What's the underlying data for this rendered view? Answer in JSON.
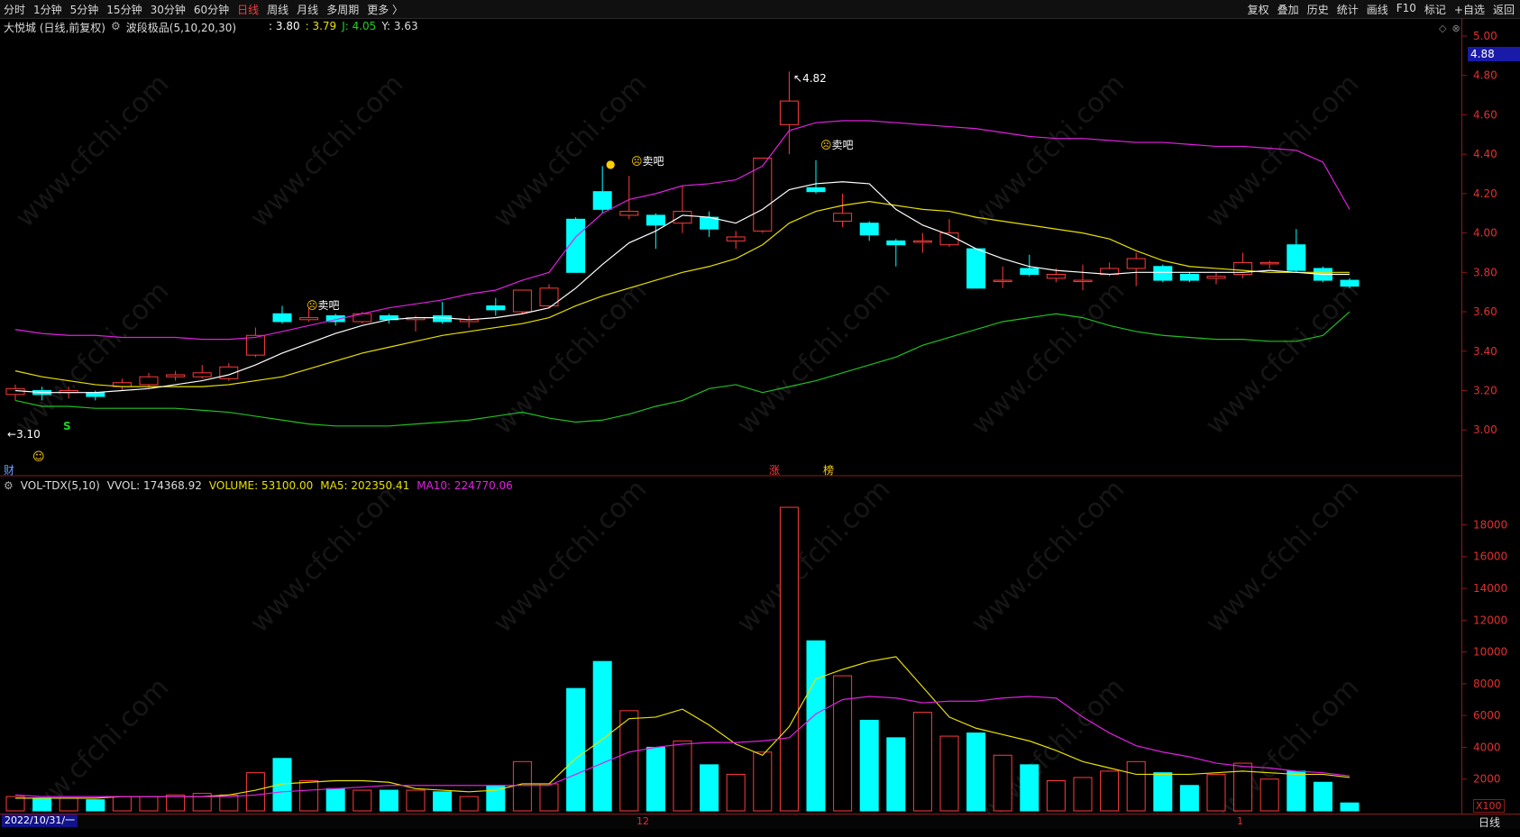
{
  "toolbar": {
    "left": [
      "分时",
      "1分钟",
      "5分钟",
      "15分钟",
      "30分钟",
      "60分钟",
      "日线",
      "周线",
      "月线",
      "多周期",
      "更多 〉"
    ],
    "active": "日线",
    "right": [
      "复权",
      "叠加",
      "历史",
      "统计",
      "画线",
      "F10",
      "标记",
      "+自选",
      "返回"
    ]
  },
  "info": {
    "title": "大悦城 (日线,前复权)",
    "indicator": "波段极品(5,10,20,30)",
    "v1": ": 3.80",
    "v2": ": 3.79",
    "j": "J: 4.05",
    "y": "Y: 3.63"
  },
  "price_badge": "4.88",
  "annotations": {
    "high": "4.82",
    "low": "3.10",
    "sell1": "卖吧",
    "sell2": "卖吧",
    "sell3": "卖吧",
    "buy_mark": "S",
    "fin": "财",
    "zhang": "涨",
    "bang": "榜"
  },
  "volume_info": {
    "name": "VOL-TDX(5,10)",
    "vvol": "VVOL: 174368.92",
    "volume": "VOLUME: 53100.00",
    "ma5": "MA5: 202350.41",
    "ma10": "MA10: 224770.06"
  },
  "bottom": {
    "start_date": "2022/10/31/一",
    "mark12": "12",
    "mark1": "1",
    "period": "日线",
    "unit": "X100"
  },
  "watermark": "www.cfchi.com",
  "colors": {
    "up": "#ff3b3b",
    "down": "#00ffff",
    "ma5": "#ffffff",
    "ma10": "#e8e000",
    "upper": "#e020e0",
    "lower": "#20c020"
  },
  "chart_data": {
    "type": "candlestick",
    "price_axis": [
      5.0,
      4.8,
      4.6,
      4.4,
      4.2,
      4.0,
      3.8,
      3.6,
      3.4,
      3.2,
      3.0
    ],
    "volume_axis": [
      18000,
      16000,
      14000,
      12000,
      10000,
      8000,
      6000,
      4000,
      2000
    ],
    "candles": [
      {
        "o": 3.18,
        "c": 3.21,
        "h": 3.23,
        "l": 3.15
      },
      {
        "o": 3.2,
        "c": 3.18,
        "h": 3.22,
        "l": 3.15
      },
      {
        "o": 3.19,
        "c": 3.2,
        "h": 3.22,
        "l": 3.16
      },
      {
        "o": 3.19,
        "c": 3.17,
        "h": 3.2,
        "l": 3.15
      },
      {
        "o": 3.22,
        "c": 3.24,
        "h": 3.26,
        "l": 3.2
      },
      {
        "o": 3.23,
        "c": 3.27,
        "h": 3.29,
        "l": 3.21
      },
      {
        "o": 3.27,
        "c": 3.28,
        "h": 3.3,
        "l": 3.25
      },
      {
        "o": 3.27,
        "c": 3.29,
        "h": 3.33,
        "l": 3.26
      },
      {
        "o": 3.26,
        "c": 3.32,
        "h": 3.34,
        "l": 3.25
      },
      {
        "o": 3.38,
        "c": 3.48,
        "h": 3.52,
        "l": 3.37
      },
      {
        "o": 3.59,
        "c": 3.55,
        "h": 3.63,
        "l": 3.54
      },
      {
        "o": 3.56,
        "c": 3.57,
        "h": 3.62,
        "l": 3.55
      },
      {
        "o": 3.58,
        "c": 3.55,
        "h": 3.59,
        "l": 3.53
      },
      {
        "o": 3.55,
        "c": 3.59,
        "h": 3.6,
        "l": 3.54
      },
      {
        "o": 3.58,
        "c": 3.56,
        "h": 3.59,
        "l": 3.54
      },
      {
        "o": 3.56,
        "c": 3.57,
        "h": 3.58,
        "l": 3.5
      },
      {
        "o": 3.58,
        "c": 3.55,
        "h": 3.65,
        "l": 3.54
      },
      {
        "o": 3.55,
        "c": 3.56,
        "h": 3.58,
        "l": 3.52
      },
      {
        "o": 3.63,
        "c": 3.61,
        "h": 3.67,
        "l": 3.58
      },
      {
        "o": 3.6,
        "c": 3.71,
        "h": 3.71,
        "l": 3.59
      },
      {
        "o": 3.63,
        "c": 3.72,
        "h": 3.74,
        "l": 3.62
      },
      {
        "o": 4.07,
        "c": 3.8,
        "h": 4.08,
        "l": 3.8
      },
      {
        "o": 4.21,
        "c": 4.12,
        "h": 4.34,
        "l": 4.1
      },
      {
        "o": 4.09,
        "c": 4.11,
        "h": 4.29,
        "l": 4.07
      },
      {
        "o": 4.09,
        "c": 4.04,
        "h": 4.1,
        "l": 3.92
      },
      {
        "o": 4.05,
        "c": 4.11,
        "h": 4.24,
        "l": 4.0
      },
      {
        "o": 4.08,
        "c": 4.02,
        "h": 4.11,
        "l": 3.98
      },
      {
        "o": 3.96,
        "c": 3.98,
        "h": 4.01,
        "l": 3.92
      },
      {
        "o": 4.01,
        "c": 4.38,
        "h": 4.38,
        "l": 4.0
      },
      {
        "o": 4.55,
        "c": 4.67,
        "h": 4.82,
        "l": 4.4
      },
      {
        "o": 4.23,
        "c": 4.21,
        "h": 4.37,
        "l": 4.2
      },
      {
        "o": 4.06,
        "c": 4.1,
        "h": 4.2,
        "l": 4.03
      },
      {
        "o": 4.05,
        "c": 3.99,
        "h": 4.06,
        "l": 3.96
      },
      {
        "o": 3.96,
        "c": 3.94,
        "h": 3.97,
        "l": 3.83
      },
      {
        "o": 3.96,
        "c": 3.96,
        "h": 4.0,
        "l": 3.9
      },
      {
        "o": 3.94,
        "c": 4.0,
        "h": 4.07,
        "l": 3.93
      },
      {
        "o": 3.92,
        "c": 3.72,
        "h": 3.92,
        "l": 3.72
      },
      {
        "o": 3.76,
        "c": 3.76,
        "h": 3.83,
        "l": 3.72
      },
      {
        "o": 3.82,
        "c": 3.79,
        "h": 3.89,
        "l": 3.78
      },
      {
        "o": 3.77,
        "c": 3.79,
        "h": 3.82,
        "l": 3.75
      },
      {
        "o": 3.76,
        "c": 3.76,
        "h": 3.84,
        "l": 3.71
      },
      {
        "o": 3.79,
        "c": 3.82,
        "h": 3.85,
        "l": 3.78
      },
      {
        "o": 3.82,
        "c": 3.87,
        "h": 3.9,
        "l": 3.73
      },
      {
        "o": 3.83,
        "c": 3.76,
        "h": 3.84,
        "l": 3.75
      },
      {
        "o": 3.79,
        "c": 3.76,
        "h": 3.8,
        "l": 3.75
      },
      {
        "o": 3.77,
        "c": 3.78,
        "h": 3.8,
        "l": 3.74
      },
      {
        "o": 3.79,
        "c": 3.85,
        "h": 3.9,
        "l": 3.77
      },
      {
        "o": 3.85,
        "c": 3.85,
        "h": 3.86,
        "l": 3.82
      },
      {
        "o": 3.94,
        "c": 3.81,
        "h": 4.02,
        "l": 3.8
      },
      {
        "o": 3.82,
        "c": 3.76,
        "h": 3.83,
        "l": 3.75
      },
      {
        "o": 3.76,
        "c": 3.73,
        "h": 3.77,
        "l": 3.72
      }
    ],
    "ma5": [
      3.2,
      3.19,
      3.19,
      3.19,
      3.2,
      3.21,
      3.23,
      3.25,
      3.28,
      3.33,
      3.39,
      3.44,
      3.49,
      3.53,
      3.56,
      3.57,
      3.57,
      3.56,
      3.57,
      3.59,
      3.62,
      3.72,
      3.84,
      3.95,
      4.01,
      4.09,
      4.08,
      4.05,
      4.12,
      4.22,
      4.25,
      4.26,
      4.25,
      4.12,
      4.04,
      3.99,
      3.92,
      3.87,
      3.83,
      3.81,
      3.8,
      3.79,
      3.8,
      3.8,
      3.8,
      3.8,
      3.8,
      3.81,
      3.8,
      3.79,
      3.79
    ],
    "ma10": [
      3.3,
      3.27,
      3.25,
      3.23,
      3.22,
      3.22,
      3.22,
      3.22,
      3.23,
      3.25,
      3.27,
      3.31,
      3.35,
      3.39,
      3.42,
      3.45,
      3.48,
      3.5,
      3.52,
      3.54,
      3.57,
      3.63,
      3.68,
      3.72,
      3.76,
      3.8,
      3.83,
      3.87,
      3.94,
      4.05,
      4.11,
      4.14,
      4.16,
      4.14,
      4.12,
      4.11,
      4.08,
      4.06,
      4.04,
      4.02,
      4.0,
      3.97,
      3.91,
      3.86,
      3.83,
      3.82,
      3.81,
      3.8,
      3.8,
      3.8,
      3.8
    ],
    "upper": [
      3.51,
      3.49,
      3.48,
      3.48,
      3.47,
      3.47,
      3.47,
      3.46,
      3.46,
      3.47,
      3.5,
      3.53,
      3.56,
      3.59,
      3.62,
      3.64,
      3.66,
      3.69,
      3.71,
      3.76,
      3.8,
      3.98,
      4.1,
      4.17,
      4.2,
      4.24,
      4.25,
      4.27,
      4.34,
      4.52,
      4.56,
      4.57,
      4.57,
      4.56,
      4.55,
      4.54,
      4.53,
      4.51,
      4.49,
      4.48,
      4.48,
      4.47,
      4.46,
      4.46,
      4.45,
      4.44,
      4.44,
      4.43,
      4.42,
      4.36,
      4.12
    ],
    "lower": [
      3.15,
      3.12,
      3.12,
      3.11,
      3.11,
      3.11,
      3.11,
      3.1,
      3.09,
      3.07,
      3.05,
      3.03,
      3.02,
      3.02,
      3.02,
      3.03,
      3.04,
      3.05,
      3.07,
      3.09,
      3.06,
      3.04,
      3.05,
      3.08,
      3.12,
      3.15,
      3.21,
      3.23,
      3.19,
      3.22,
      3.25,
      3.29,
      3.33,
      3.37,
      3.43,
      3.47,
      3.51,
      3.55,
      3.57,
      3.59,
      3.57,
      3.53,
      3.5,
      3.48,
      3.47,
      3.46,
      3.46,
      3.45,
      3.45,
      3.48,
      3.6
    ],
    "volumes": [
      900,
      800,
      800,
      700,
      900,
      900,
      1000,
      1100,
      1000,
      2400,
      3300,
      1900,
      1400,
      1300,
      1300,
      1300,
      1200,
      900,
      1600,
      3100,
      1700,
      7700,
      9400,
      6300,
      4000,
      4400,
      2900,
      2300,
      3700,
      19100,
      10700,
      8500,
      5700,
      4600,
      6200,
      4700,
      4900,
      3500,
      2900,
      1900,
      2100,
      2500,
      3100,
      2400,
      1600,
      2300,
      3000,
      2000,
      2500,
      1800,
      500
    ],
    "vol_ma5": [
      800,
      800,
      800,
      800,
      900,
      900,
      900,
      900,
      1000,
      1300,
      1700,
      1800,
      1900,
      1900,
      1800,
      1400,
      1300,
      1200,
      1300,
      1700,
      1700,
      3300,
      4500,
      5800,
      5900,
      6400,
      5400,
      4200,
      3500,
      5300,
      8300,
      8900,
      9400,
      9700,
      7800,
      5900,
      5200,
      4800,
      4400,
      3800,
      3100,
      2700,
      2300,
      2300,
      2300,
      2400,
      2500,
      2400,
      2300,
      2300,
      2100
    ],
    "vol_ma10": [
      1000,
      900,
      900,
      900,
      900,
      900,
      900,
      900,
      900,
      1000,
      1200,
      1300,
      1400,
      1500,
      1600,
      1600,
      1600,
      1600,
      1600,
      1600,
      1600,
      2300,
      3000,
      3700,
      4000,
      4200,
      4300,
      4300,
      4400,
      4600,
      6100,
      7000,
      7200,
      7100,
      6800,
      6900,
      6900,
      7100,
      7200,
      7100,
      5900,
      4900,
      4100,
      3700,
      3400,
      3000,
      2800,
      2700,
      2500,
      2400,
      2200
    ]
  }
}
